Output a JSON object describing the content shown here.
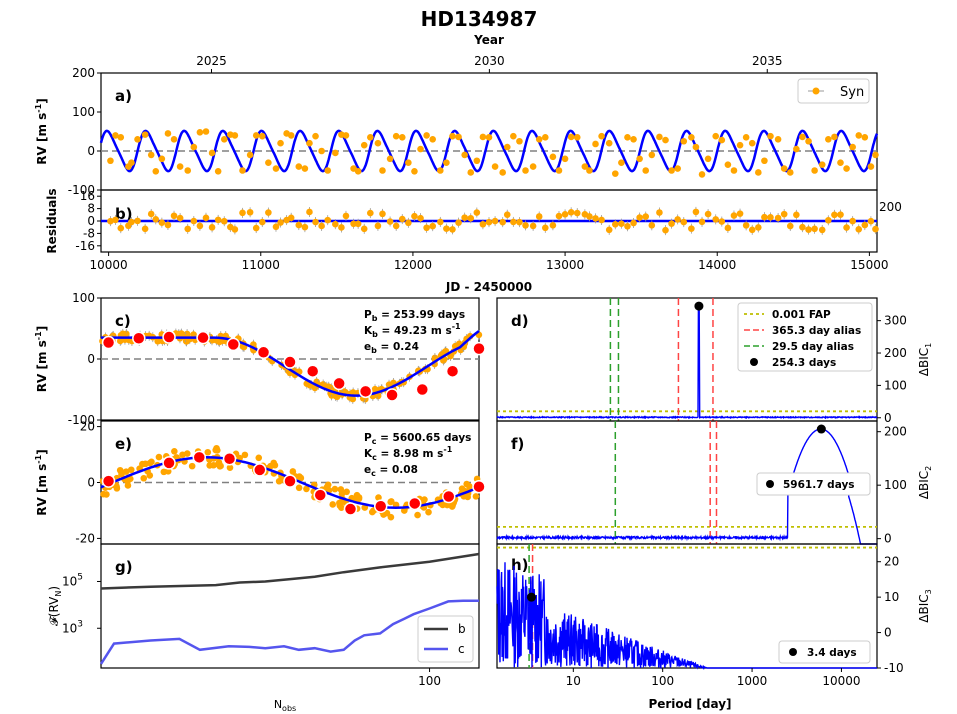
{
  "figure": {
    "title": "HD134987",
    "top_axis_label": "Year",
    "top_ticks": [
      2025,
      2030,
      2035
    ],
    "jd_label": "JD - 2450000",
    "jd_ticks": [
      10000,
      11000,
      12000,
      13000,
      14000,
      15000
    ],
    "period_label": "Period [day]",
    "nobs_label": "N",
    "nobs_sub": "obs",
    "colors": {
      "model": "#0000ff",
      "points": "#ffa500",
      "binned": "#ff0000",
      "zero": "#808080",
      "fap": "#bfbf00",
      "alias_year": "#ff4444",
      "alias_month": "#2ca02c",
      "curve_b": "#3a3a3a",
      "curve_c": "#5555ee"
    }
  },
  "chart_data": [
    {
      "id": "a",
      "type": "scatter",
      "panel_label": "a)",
      "ylabel": "RV [m s",
      "ylabel_sup": "-1",
      "ylabel_tail": "]",
      "xlim": [
        9950,
        15050
      ],
      "ylim": [
        -100,
        200
      ],
      "yticks": [
        -100,
        0,
        100,
        200
      ],
      "legend": [
        "Syn"
      ],
      "model": {
        "amplitude": 49.23,
        "period": 253.99,
        "offset": 0
      },
      "points": [
        [
          10012,
          -25
        ],
        [
          10045,
          40
        ],
        [
          10080,
          35
        ],
        [
          10130,
          -40
        ],
        [
          10150,
          -30
        ],
        [
          10190,
          30
        ],
        [
          10240,
          42
        ],
        [
          10280,
          -10
        ],
        [
          10310,
          -52
        ],
        [
          10350,
          -20
        ],
        [
          10390,
          45
        ],
        [
          10430,
          30
        ],
        [
          10470,
          -40
        ],
        [
          10520,
          -50
        ],
        [
          10560,
          10
        ],
        [
          10600,
          48
        ],
        [
          10640,
          50
        ],
        [
          10680,
          -5
        ],
        [
          10720,
          -52
        ],
        [
          10760,
          30
        ],
        [
          10800,
          42
        ],
        [
          10830,
          40
        ],
        [
          10880,
          -50
        ],
        [
          10930,
          -10
        ],
        [
          10970,
          40
        ],
        [
          11010,
          38
        ],
        [
          11050,
          -30
        ],
        [
          11100,
          -45
        ],
        [
          11130,
          20
        ],
        [
          11170,
          45
        ],
        [
          11200,
          40
        ],
        [
          11250,
          -40
        ],
        [
          11290,
          -45
        ],
        [
          11320,
          20
        ],
        [
          11360,
          38
        ],
        [
          11400,
          0
        ],
        [
          11440,
          -50
        ],
        [
          11490,
          -5
        ],
        [
          11530,
          42
        ],
        [
          11560,
          40
        ],
        [
          11610,
          -45
        ],
        [
          11640,
          -52
        ],
        [
          11680,
          15
        ],
        [
          11720,
          35
        ],
        [
          11770,
          20
        ],
        [
          11800,
          -50
        ],
        [
          11850,
          -20
        ],
        [
          11890,
          38
        ],
        [
          11930,
          35
        ],
        [
          11970,
          -30
        ],
        [
          12010,
          -52
        ],
        [
          12050,
          5
        ],
        [
          12090,
          40
        ],
        [
          12130,
          30
        ],
        [
          12180,
          -50
        ],
        [
          12220,
          -30
        ],
        [
          12260,
          38
        ],
        [
          12300,
          36
        ],
        [
          12340,
          -10
        ],
        [
          12380,
          -55
        ],
        [
          12420,
          -25
        ],
        [
          12460,
          36
        ],
        [
          12500,
          35
        ],
        [
          12540,
          -40
        ],
        [
          12590,
          -55
        ],
        [
          12620,
          10
        ],
        [
          12660,
          38
        ],
        [
          12700,
          25
        ],
        [
          12740,
          -50
        ],
        [
          12790,
          -40
        ],
        [
          12830,
          30
        ],
        [
          12870,
          35
        ],
        [
          12920,
          -15
        ],
        [
          12960,
          -50
        ],
        [
          13000,
          -20
        ],
        [
          13040,
          36
        ],
        [
          13080,
          35
        ],
        [
          13130,
          -40
        ],
        [
          13160,
          -50
        ],
        [
          13200,
          18
        ],
        [
          13240,
          38
        ],
        [
          13290,
          20
        ],
        [
          13330,
          -58
        ],
        [
          13370,
          -30
        ],
        [
          13410,
          35
        ],
        [
          13450,
          30
        ],
        [
          13490,
          -20
        ],
        [
          13530,
          -50
        ],
        [
          13570,
          -10
        ],
        [
          13620,
          36
        ],
        [
          13660,
          28
        ],
        [
          13700,
          -50
        ],
        [
          13740,
          -45
        ],
        [
          13780,
          25
        ],
        [
          13830,
          35
        ],
        [
          13860,
          10
        ],
        [
          13900,
          -60
        ],
        [
          13940,
          -20
        ],
        [
          13990,
          38
        ],
        [
          14030,
          28
        ],
        [
          14070,
          -35
        ],
        [
          14110,
          -50
        ],
        [
          14150,
          15
        ],
        [
          14190,
          35
        ],
        [
          14230,
          20
        ],
        [
          14270,
          -55
        ],
        [
          14310,
          -25
        ],
        [
          14350,
          38
        ],
        [
          14400,
          30
        ],
        [
          14440,
          -45
        ],
        [
          14480,
          -55
        ],
        [
          14520,
          5
        ],
        [
          14560,
          36
        ],
        [
          14600,
          25
        ],
        [
          14640,
          -50
        ],
        [
          14690,
          -35
        ],
        [
          14730,
          30
        ],
        [
          14770,
          36
        ],
        [
          14810,
          -30
        ],
        [
          14850,
          -45
        ],
        [
          14890,
          10
        ],
        [
          14930,
          40
        ],
        [
          14970,
          35
        ],
        [
          15010,
          -40
        ],
        [
          15040,
          -10
        ]
      ]
    },
    {
      "id": "b",
      "type": "scatter",
      "panel_label": "b)",
      "ylabel": "Residuals",
      "xlim": [
        9950,
        15050
      ],
      "ylim": [
        -20,
        20
      ],
      "yticks": [
        -16,
        -8,
        0,
        8,
        16
      ],
      "overlap_tick_label": "200"
    },
    {
      "id": "c",
      "type": "scatter",
      "panel_label": "c)",
      "ylabel": "RV [m s",
      "ylabel_sup": "-1",
      "ylabel_tail": "]",
      "xlim": [
        0,
        1
      ],
      "ylim": [
        -100,
        100
      ],
      "yticks": [
        -100,
        0,
        100
      ],
      "annotation": [
        {
          "name": "P",
          "sub": "b",
          "text": " = 253.99 days"
        },
        {
          "name": "K",
          "sub": "b",
          "text": " = 49.23 m s",
          "sup": "-1"
        },
        {
          "name": "e",
          "sub": "b",
          "text": " = 0.24"
        }
      ],
      "binned": [
        [
          0.02,
          27
        ],
        [
          0.1,
          34
        ],
        [
          0.18,
          36
        ],
        [
          0.27,
          35
        ],
        [
          0.35,
          24
        ],
        [
          0.43,
          11
        ],
        [
          0.5,
          -5
        ],
        [
          0.56,
          -20
        ],
        [
          0.63,
          -40
        ],
        [
          0.7,
          -53
        ],
        [
          0.77,
          -59
        ],
        [
          0.85,
          -50
        ],
        [
          0.93,
          -20
        ],
        [
          1.0,
          17
        ]
      ]
    },
    {
      "id": "d",
      "type": "line",
      "panel_label": "d)",
      "ylabel": "ΔBIC",
      "ylabel_sub": "1",
      "xlim_log": [
        1.4,
        25000
      ],
      "ylim": [
        -10,
        370
      ],
      "yticks": [
        0,
        100,
        200,
        300
      ],
      "fap": 20,
      "alias_year": [
        150,
        365.3
      ],
      "alias_month": [
        26,
        32
      ],
      "peak": [
        254.3,
        345
      ],
      "legend": [
        "0.001 FAP",
        "365.3 day alias",
        "29.5 day alias",
        "254.3 days"
      ]
    },
    {
      "id": "e",
      "type": "scatter",
      "panel_label": "e)",
      "ylabel": "RV [m s",
      "ylabel_sup": "-1",
      "ylabel_tail": "]",
      "xlim": [
        0,
        1
      ],
      "ylim": [
        -22,
        22
      ],
      "yticks": [
        -20,
        0,
        20
      ],
      "annotation": [
        {
          "name": "P",
          "sub": "c",
          "text": " = 5600.65 days"
        },
        {
          "name": "K",
          "sub": "c",
          "text": " = 8.98 m s",
          "sup": "-1"
        },
        {
          "name": "e",
          "sub": "c",
          "text": " = 0.08"
        }
      ],
      "binned": [
        [
          0.02,
          0.5
        ],
        [
          0.18,
          7
        ],
        [
          0.26,
          9
        ],
        [
          0.34,
          8.5
        ],
        [
          0.42,
          4.5
        ],
        [
          0.5,
          0.5
        ],
        [
          0.58,
          -4.5
        ],
        [
          0.66,
          -9.5
        ],
        [
          0.74,
          -8.5
        ],
        [
          0.83,
          -7.5
        ],
        [
          0.92,
          -5
        ],
        [
          1.0,
          -1.5
        ]
      ]
    },
    {
      "id": "f",
      "type": "line",
      "panel_label": "f)",
      "ylabel": "ΔBIC",
      "ylabel_sub": "2",
      "xlim_log": [
        1.4,
        25000
      ],
      "ylim": [
        -10,
        220
      ],
      "yticks": [
        0,
        100,
        200
      ],
      "fap": 22,
      "alias_year": [
        340,
        400
      ],
      "alias_month": [
        29.5
      ],
      "peak": [
        5961.7,
        205
      ],
      "legend": [
        "5961.7 days"
      ]
    },
    {
      "id": "g",
      "type": "line",
      "panel_label": "g)",
      "ylabel": "𝓕(RV",
      "ylabel_sub": "N",
      "ylabel_tail": ")",
      "xlim_log": [
        1,
        200
      ],
      "ylim_log": [
        20.0,
        4000000.0
      ],
      "yticks_label": [
        {
          "v": 1000,
          "t": "10",
          "e": "3"
        },
        {
          "v": 100000,
          "t": "10",
          "e": "5"
        }
      ],
      "xticks_label": [
        100
      ],
      "series": [
        {
          "name": "b",
          "values": [
            [
              1,
              50000.0
            ],
            [
              2,
              60000.0
            ],
            [
              5,
              70000.0
            ],
            [
              7,
              90000.0
            ],
            [
              10,
              100000.0
            ],
            [
              15,
              130000.0
            ],
            [
              20,
              160000.0
            ],
            [
              30,
              250000.0
            ],
            [
              50,
              400000.0
            ],
            [
              100,
              700000.0
            ],
            [
              200,
              1500000.0
            ]
          ]
        },
        {
          "name": "c",
          "values": [
            [
              1,
              30
            ],
            [
              1.2,
              220
            ],
            [
              2,
              300
            ],
            [
              3,
              350
            ],
            [
              4,
              120
            ],
            [
              6,
              170
            ],
            [
              8,
              160
            ],
            [
              10,
              140
            ],
            [
              13,
              170
            ],
            [
              16,
              120
            ],
            [
              20,
              140
            ],
            [
              25,
              100
            ],
            [
              30,
              120
            ],
            [
              35,
              300
            ],
            [
              40,
              500
            ],
            [
              50,
              600
            ],
            [
              60,
              1500
            ],
            [
              70,
              2500
            ],
            [
              80,
              4000
            ],
            [
              100,
              7000
            ],
            [
              130,
              14000.0
            ],
            [
              160,
              15000.0
            ],
            [
              200,
              15000.0
            ]
          ]
        }
      ]
    },
    {
      "id": "h",
      "type": "line",
      "panel_label": "h)",
      "ylabel": "ΔBIC",
      "ylabel_sub": "3",
      "xlim_log": [
        1.4,
        25000
      ],
      "ylim": [
        -10,
        25
      ],
      "yticks": [
        -10,
        0,
        10,
        20
      ],
      "fap": 24,
      "alias_year": [
        3.5
      ],
      "alias_month": [
        3.2
      ],
      "peak": [
        3.4,
        10
      ],
      "xticks_label": [
        10,
        100,
        1000,
        10000
      ],
      "legend": [
        "3.4 days"
      ]
    }
  ]
}
